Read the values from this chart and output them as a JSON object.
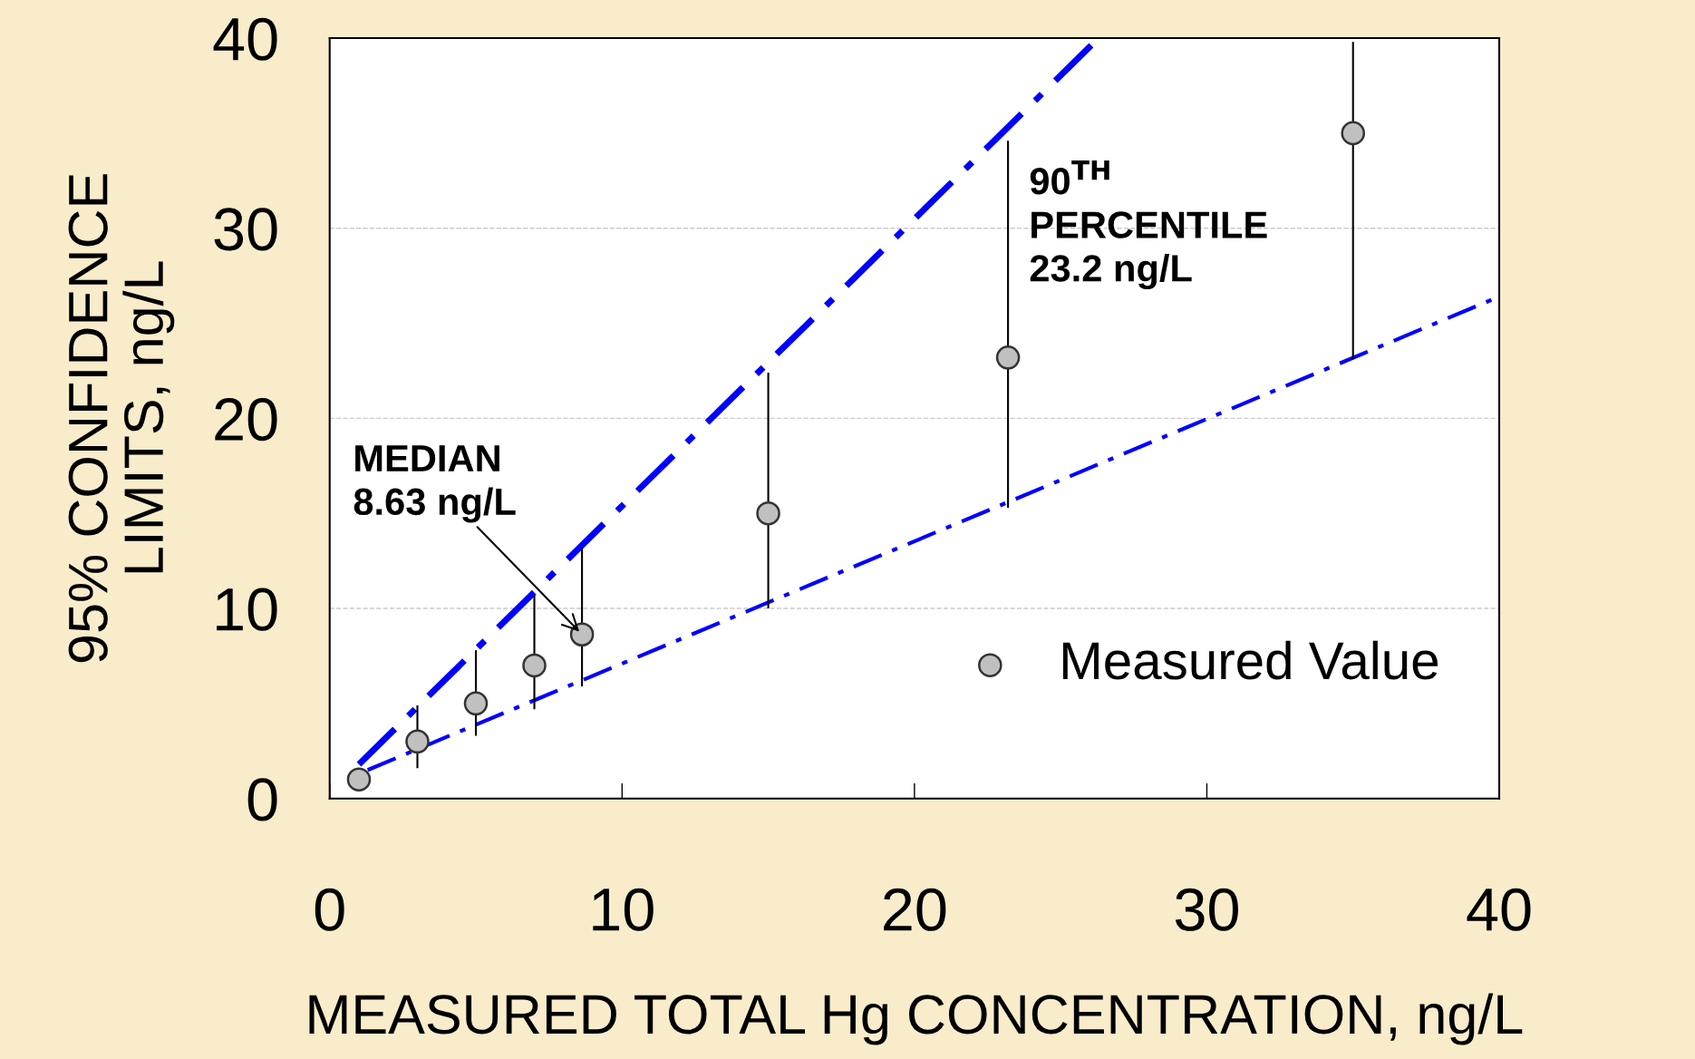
{
  "chart_data": {
    "type": "scatter",
    "xlabel": "MEASURED TOTAL Hg CONCENTRATION, ng/L",
    "ylabel": "95% CONFIDENCE\nLIMITS, ng/L",
    "xlim": [
      0,
      40
    ],
    "ylim": [
      0,
      40
    ],
    "xticks": [
      0,
      10,
      20,
      30,
      40
    ],
    "yticks": [
      0,
      10,
      20,
      30,
      40
    ],
    "grid": "y",
    "legend": "bottom right",
    "annotations": [
      {
        "text": "MEDIAN\n8.63 ng/L",
        "x": 8.63,
        "y": 8.63
      },
      "90$^{TH}$\nPERCENTILE\n23.2 ng/L"
    ],
    "series": [
      {
        "name": "Measured Value",
        "color": "#c0c0c0",
        "marker": "circle",
        "x": [
          1,
          3,
          5,
          7,
          8.63,
          15,
          23.2,
          35
        ],
        "values": [
          1,
          3,
          5,
          7,
          8.63,
          15,
          23.2,
          35
        ],
        "errors": [
          null,
          [
            1.6,
            4.9
          ],
          [
            3.3,
            7.8
          ],
          [
            4.7,
            10.7
          ],
          [
            5.9,
            13.2
          ],
          [
            10,
            22.4
          ],
          [
            15.3,
            34.6
          ],
          [
            23.1,
            39.8
          ]
        ]
      },
      {
        "type": "line",
        "color": "#0000ff",
        "line_style": "dashed",
        "marker": "none",
        "x": [
          1,
          26.3
        ],
        "values": [
          1.8,
          40
        ]
      },
      {
        "type": "line",
        "color": "#0000ff",
        "line_style": "dashed",
        "marker": "none",
        "x": [
          1.3,
          40
        ],
        "values": [
          1.5,
          26.4
        ]
      }
    ]
  }
}
